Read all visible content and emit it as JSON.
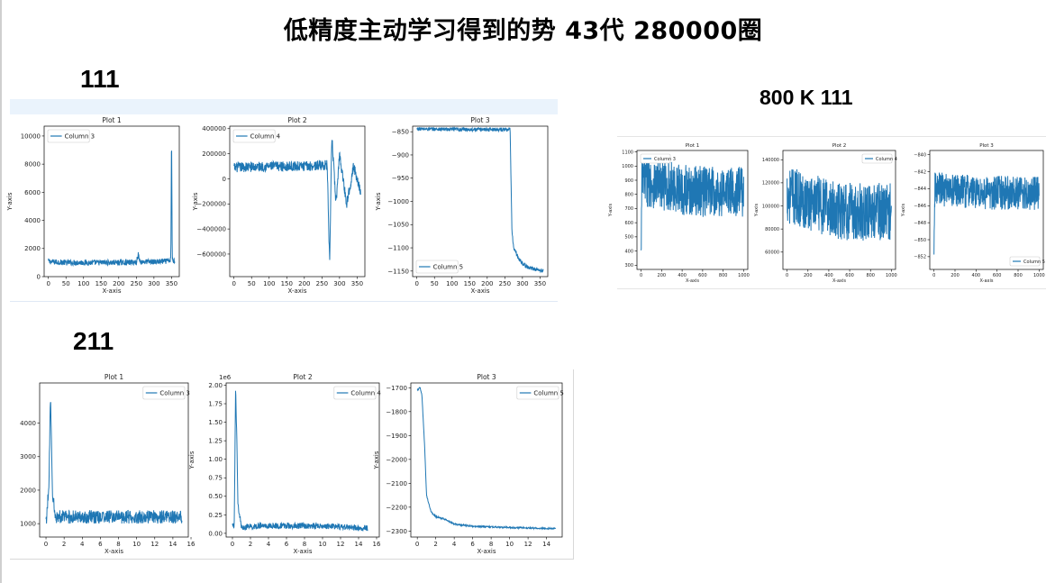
{
  "slide": {
    "title": "低精度主动学习得到的势 43代 280000圈",
    "label_top_left": "111",
    "label_bottom_left": "211",
    "label_right": "800 K 111"
  },
  "colors": {
    "line": "#1f77b4",
    "band": "#eaf3fc"
  },
  "chart_data": [
    {
      "group": "111",
      "type": "line",
      "title": "Plot 1",
      "xlabel": "X-axis",
      "ylabel": "Y-axis",
      "series": [
        {
          "name": "Column 3",
          "points": [
            [
              0,
              1100
            ],
            [
              10,
              1050
            ],
            [
              50,
              1000
            ],
            [
              100,
              1000
            ],
            [
              150,
              1000
            ],
            [
              200,
              1000
            ],
            [
              240,
              1020
            ],
            [
              250,
              1000
            ],
            [
              255,
              1600
            ],
            [
              260,
              1050
            ],
            [
              300,
              1050
            ],
            [
              340,
              1100
            ],
            [
              348,
              1200
            ],
            [
              350,
              10500
            ],
            [
              352,
              1200
            ],
            [
              360,
              1100
            ]
          ],
          "noise": 200
        }
      ],
      "xlim": [
        -12,
        372
      ],
      "ylim": [
        0,
        10700
      ],
      "xticks": [
        0,
        50,
        100,
        150,
        200,
        250,
        300,
        350
      ],
      "yticks": [
        0,
        2000,
        4000,
        6000,
        8000,
        10000
      ],
      "xtick_labels": [
        "0",
        "50",
        "100",
        "150",
        "200",
        "250",
        "300",
        "350"
      ],
      "ytick_labels": [
        "0",
        "2000",
        "4000",
        "6000",
        "8000",
        "10000"
      ],
      "legend": "top-left"
    },
    {
      "group": "111",
      "type": "line",
      "title": "Plot 2",
      "xlabel": "X-axis",
      "ylabel": "Y-axis",
      "series": [
        {
          "name": "Column 4",
          "points": [
            [
              0,
              90000
            ],
            [
              100,
              100000
            ],
            [
              200,
              100000
            ],
            [
              265,
              110000
            ],
            [
              272,
              -700000
            ],
            [
              278,
              350000
            ],
            [
              290,
              -200000
            ],
            [
              300,
              200000
            ],
            [
              320,
              -200000
            ],
            [
              340,
              100000
            ],
            [
              360,
              -100000
            ]
          ],
          "noise": 40000
        }
      ],
      "xlim": [
        -12,
        372
      ],
      "ylim": [
        -780000,
        420000
      ],
      "xticks": [
        0,
        50,
        100,
        150,
        200,
        250,
        300,
        350
      ],
      "yticks": [
        -600000,
        -400000,
        -200000,
        0,
        200000,
        400000
      ],
      "xtick_labels": [
        "0",
        "50",
        "100",
        "150",
        "200",
        "250",
        "300",
        "350"
      ],
      "ytick_labels": [
        "−600000",
        "−400000",
        "−200000",
        "0",
        "200000",
        "400000"
      ],
      "legend": "top-left"
    },
    {
      "group": "111",
      "type": "line",
      "title": "Plot 3",
      "xlabel": "X-axis",
      "ylabel": "Y-axis",
      "series": [
        {
          "name": "Column 5",
          "points": [
            [
              0,
              -844
            ],
            [
              100,
              -845
            ],
            [
              200,
              -845
            ],
            [
              265,
              -845
            ],
            [
              270,
              -1060
            ],
            [
              275,
              -1100
            ],
            [
              290,
              -1125
            ],
            [
              310,
              -1140
            ],
            [
              330,
              -1145
            ],
            [
              360,
              -1150
            ]
          ],
          "noise": 4
        }
      ],
      "xlim": [
        -12,
        372
      ],
      "ylim": [
        -1162,
        -838
      ],
      "xticks": [
        0,
        50,
        100,
        150,
        200,
        250,
        300,
        350
      ],
      "yticks": [
        -1150,
        -1100,
        -1050,
        -1000,
        -950,
        -900,
        -850
      ],
      "xtick_labels": [
        "0",
        "50",
        "100",
        "150",
        "200",
        "250",
        "300",
        "350"
      ],
      "ytick_labels": [
        "−1150",
        "−1100",
        "−1050",
        "−1000",
        "−950",
        "−900",
        "−850"
      ],
      "legend": "bottom-left"
    },
    {
      "group": "800 K 111",
      "type": "line",
      "title": "Plot 1",
      "xlabel": "X-axis",
      "ylabel": "Y-axis",
      "series": [
        {
          "name": "Column 3",
          "points": [
            [
              0,
              320
            ],
            [
              8,
              900
            ],
            [
              500,
              820
            ],
            [
              1000,
              820
            ]
          ],
          "noise": 180
        }
      ],
      "xlim": [
        -40,
        1040
      ],
      "ylim": [
        270,
        1110
      ],
      "xticks": [
        0,
        200,
        400,
        600,
        800,
        1000
      ],
      "yticks": [
        300,
        400,
        500,
        600,
        700,
        800,
        900,
        1000,
        1100
      ],
      "xtick_labels": [
        "0",
        "200",
        "400",
        "600",
        "800",
        "1000"
      ],
      "ytick_labels": [
        "300",
        "400",
        "500",
        "600",
        "700",
        "800",
        "900",
        "1000",
        "1100"
      ],
      "legend": "top-left"
    },
    {
      "group": "800 K 111",
      "type": "line",
      "title": "Plot 2",
      "xlabel": "X-axis",
      "ylabel": "Y-axis",
      "series": [
        {
          "name": "Column 4",
          "points": [
            [
              0,
              110000
            ],
            [
              500,
              95000
            ],
            [
              1000,
              95000
            ]
          ],
          "noise": 25000
        }
      ],
      "xlim": [
        -40,
        1040
      ],
      "ylim": [
        45000,
        148000
      ],
      "xticks": [
        0,
        200,
        400,
        600,
        800,
        1000
      ],
      "yticks": [
        60000,
        80000,
        100000,
        120000,
        140000
      ],
      "xtick_labels": [
        "0",
        "200",
        "400",
        "600",
        "800",
        "1000"
      ],
      "ytick_labels": [
        "60000",
        "80000",
        "100000",
        "120000",
        "140000"
      ],
      "legend": "top-right"
    },
    {
      "group": "800 K 111",
      "type": "line",
      "title": "Plot 3",
      "xlabel": "X-axis",
      "ylabel": "Y-axis",
      "series": [
        {
          "name": "Column 5",
          "points": [
            [
              0,
              -853
            ],
            [
              8,
              -844
            ],
            [
              500,
              -844.5
            ],
            [
              1000,
              -844.5
            ]
          ],
          "noise": 2
        }
      ],
      "xlim": [
        -40,
        1040
      ],
      "ylim": [
        -853.5,
        -839.5
      ],
      "xticks": [
        0,
        200,
        400,
        600,
        800,
        1000
      ],
      "yticks": [
        -852,
        -850,
        -848,
        -846,
        -844,
        -842,
        -840
      ],
      "xtick_labels": [
        "0",
        "200",
        "400",
        "600",
        "800",
        "1000"
      ],
      "ytick_labels": [
        "−852",
        "−850",
        "−848",
        "−846",
        "−844",
        "−842",
        "−840"
      ],
      "legend": "bottom-right"
    },
    {
      "group": "211",
      "type": "line",
      "title": "Plot 1",
      "xlabel": "X-axis",
      "ylabel": "",
      "series": [
        {
          "name": "Column 3",
          "points": [
            [
              0,
              1000
            ],
            [
              0.3,
              2000
            ],
            [
              0.5,
              4800
            ],
            [
              0.7,
              2000
            ],
            [
              1,
              1200
            ],
            [
              2,
              1200
            ],
            [
              5,
              1200
            ],
            [
              10,
              1200
            ],
            [
              15,
              1200
            ]
          ],
          "noise": 200
        }
      ],
      "xlim": [
        -0.7,
        15.7
      ],
      "ylim": [
        600,
        5200
      ],
      "xticks": [
        0,
        2,
        4,
        6,
        8,
        10,
        12,
        14,
        16
      ],
      "yticks": [
        1000,
        2000,
        3000,
        4000
      ],
      "xtick_labels": [
        "0",
        "2",
        "4",
        "6",
        "8",
        "10",
        "12",
        "14",
        "16"
      ],
      "ytick_labels": [
        "1000",
        "2000",
        "3000",
        "4000"
      ],
      "legend": "top-right"
    },
    {
      "group": "211",
      "type": "line",
      "title": "Plot 2",
      "xlabel": "X-axis",
      "ylabel": "Y-axis",
      "y_offset_label": "1e6",
      "series": [
        {
          "name": "Column 4",
          "points": [
            [
              0,
              0.1
            ],
            [
              0.2,
              0.12
            ],
            [
              0.35,
              1.95
            ],
            [
              0.5,
              1.2
            ],
            [
              0.6,
              0.4
            ],
            [
              1,
              0.08
            ],
            [
              3,
              0.1
            ],
            [
              6,
              0.1
            ],
            [
              10,
              0.1
            ],
            [
              15,
              0.07
            ]
          ],
          "noise": 0.04
        }
      ],
      "xlim": [
        -0.7,
        16.3
      ],
      "ylim": [
        -0.05,
        2.03
      ],
      "xticks": [
        0,
        2,
        4,
        6,
        8,
        10,
        12,
        14,
        16
      ],
      "yticks": [
        0,
        0.25,
        0.5,
        0.75,
        1,
        1.25,
        1.5,
        1.75,
        2
      ],
      "xtick_labels": [
        "0",
        "2",
        "4",
        "6",
        "8",
        "10",
        "12",
        "14",
        "16"
      ],
      "ytick_labels": [
        "0.00",
        "0.25",
        "0.50",
        "0.75",
        "1.00",
        "1.25",
        "1.50",
        "1.75",
        "2.00"
      ],
      "legend": "top-right"
    },
    {
      "group": "211",
      "type": "line",
      "title": "Plot 3",
      "xlabel": "X-axis",
      "ylabel": "Y-axis",
      "series": [
        {
          "name": "Column 5",
          "points": [
            [
              0,
              -1710
            ],
            [
              0.3,
              -1700
            ],
            [
              0.5,
              -1730
            ],
            [
              0.8,
              -1950
            ],
            [
              1,
              -2150
            ],
            [
              1.5,
              -2220
            ],
            [
              2,
              -2240
            ],
            [
              3,
              -2250
            ],
            [
              4,
              -2270
            ],
            [
              6,
              -2280
            ],
            [
              10,
              -2285
            ],
            [
              15,
              -2290
            ]
          ],
          "noise": 3
        }
      ],
      "xlim": [
        -0.7,
        15.7
      ],
      "ylim": [
        -2325,
        -1680
      ],
      "xticks": [
        0,
        2,
        4,
        6,
        8,
        10,
        12,
        14
      ],
      "yticks": [
        -2300,
        -2200,
        -2100,
        -2000,
        -1900,
        -1800,
        -1700
      ],
      "xtick_labels": [
        "0",
        "2",
        "4",
        "6",
        "8",
        "10",
        "12",
        "14"
      ],
      "ytick_labels": [
        "−2300",
        "−2200",
        "−2100",
        "−2000",
        "−1900",
        "−1800",
        "−1700"
      ],
      "legend": "top-right"
    }
  ]
}
